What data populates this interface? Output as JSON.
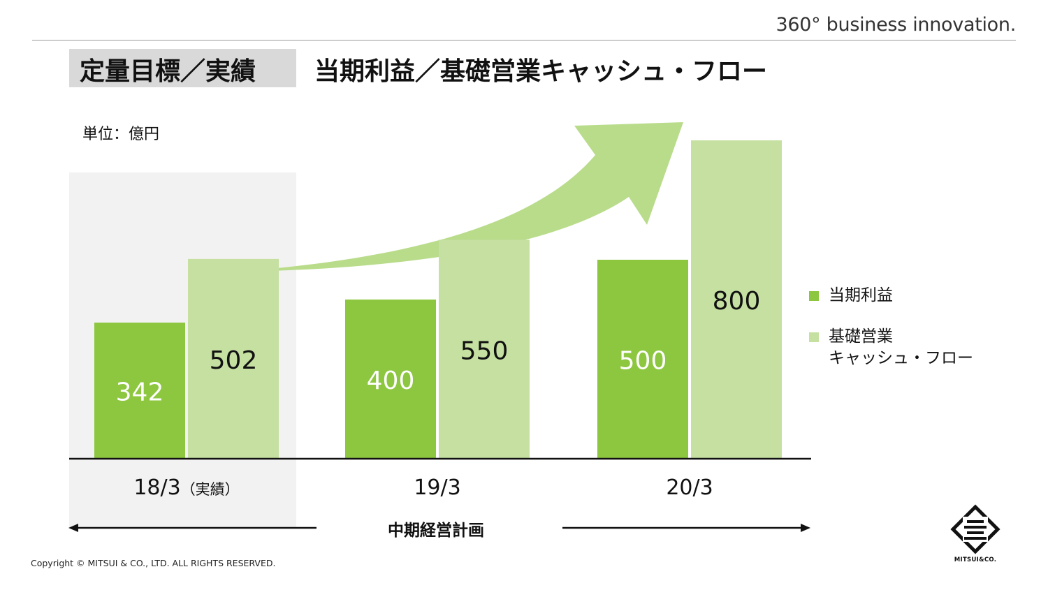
{
  "header": {
    "tagline": "360° business innovation.",
    "title_label": "定量目標／実績",
    "title_main": "当期利益／基礎営業キャッシュ・フロー"
  },
  "chart_data": {
    "type": "bar",
    "unit_label": "単位：億円",
    "categories": [
      "18/3（実績）",
      "19/3",
      "20/3"
    ],
    "series": [
      {
        "name": "当期利益",
        "values": [
          342,
          400,
          500
        ],
        "color": "#8dc63f",
        "label_color": "#ffffff"
      },
      {
        "name": "基礎営業キャッシュ・フロー",
        "values": [
          502,
          550,
          800
        ],
        "color": "#c5e0a1",
        "label_color": "#111111"
      }
    ],
    "ylim": [
      0,
      900
    ],
    "actual_highlight_color": "#f2f2f2",
    "arrow_color": "#b9dc8b",
    "legend_placement": "right"
  },
  "legend": {
    "items": [
      {
        "lines": [
          "当期利益"
        ],
        "color": "#8dc63f"
      },
      {
        "lines": [
          "基礎営業",
          "キャッシュ・フロー"
        ],
        "color": "#c5e0a1"
      }
    ]
  },
  "period": {
    "label": "中期経営計画"
  },
  "footer": {
    "copyright": "Copyright © MITSUI & CO., LTD. ALL RIGHTS RESERVED.",
    "logo_text": "MITSUI&CO."
  }
}
